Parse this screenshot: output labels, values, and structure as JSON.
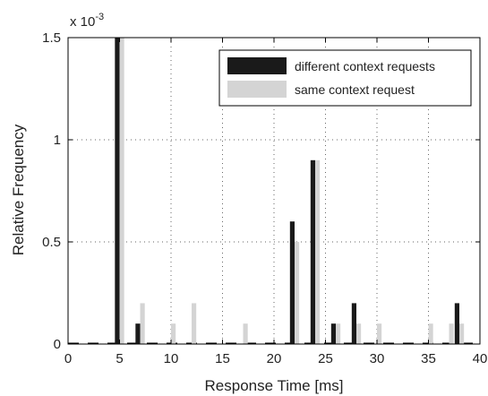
{
  "chart_data": {
    "type": "bar",
    "title": "",
    "xlabel": "Response Time [ms]",
    "ylabel": "Relative Frequency",
    "y_exponent_label": "x 10",
    "y_exponent_power": "-3",
    "xlim": [
      0,
      40
    ],
    "ylim": [
      0,
      1.5
    ],
    "x_ticks": [
      0,
      5,
      10,
      15,
      20,
      25,
      30,
      35,
      40
    ],
    "y_ticks": [
      0,
      0.5,
      1,
      1.5
    ],
    "y_tick_labels": [
      "0",
      "0.5",
      "1",
      "1.5"
    ],
    "grid": true,
    "legend_position": "top-right",
    "x": [
      5,
      7,
      10,
      12,
      17,
      22,
      24,
      26,
      28,
      30,
      35,
      37,
      38
    ],
    "series": [
      {
        "name": "different context requests",
        "color": "#1a1a1a",
        "values": [
          1.5,
          0.1,
          0,
          0,
          0,
          0.6,
          0.9,
          0.1,
          0.2,
          0,
          0,
          0,
          0.2
        ]
      },
      {
        "name": "same context request",
        "color": "#d4d4d4",
        "values": [
          1.5,
          0.2,
          0.1,
          0.2,
          0.1,
          0.5,
          0.9,
          0.1,
          0.1,
          0.1,
          0.1,
          0.1,
          0.1
        ]
      }
    ]
  }
}
